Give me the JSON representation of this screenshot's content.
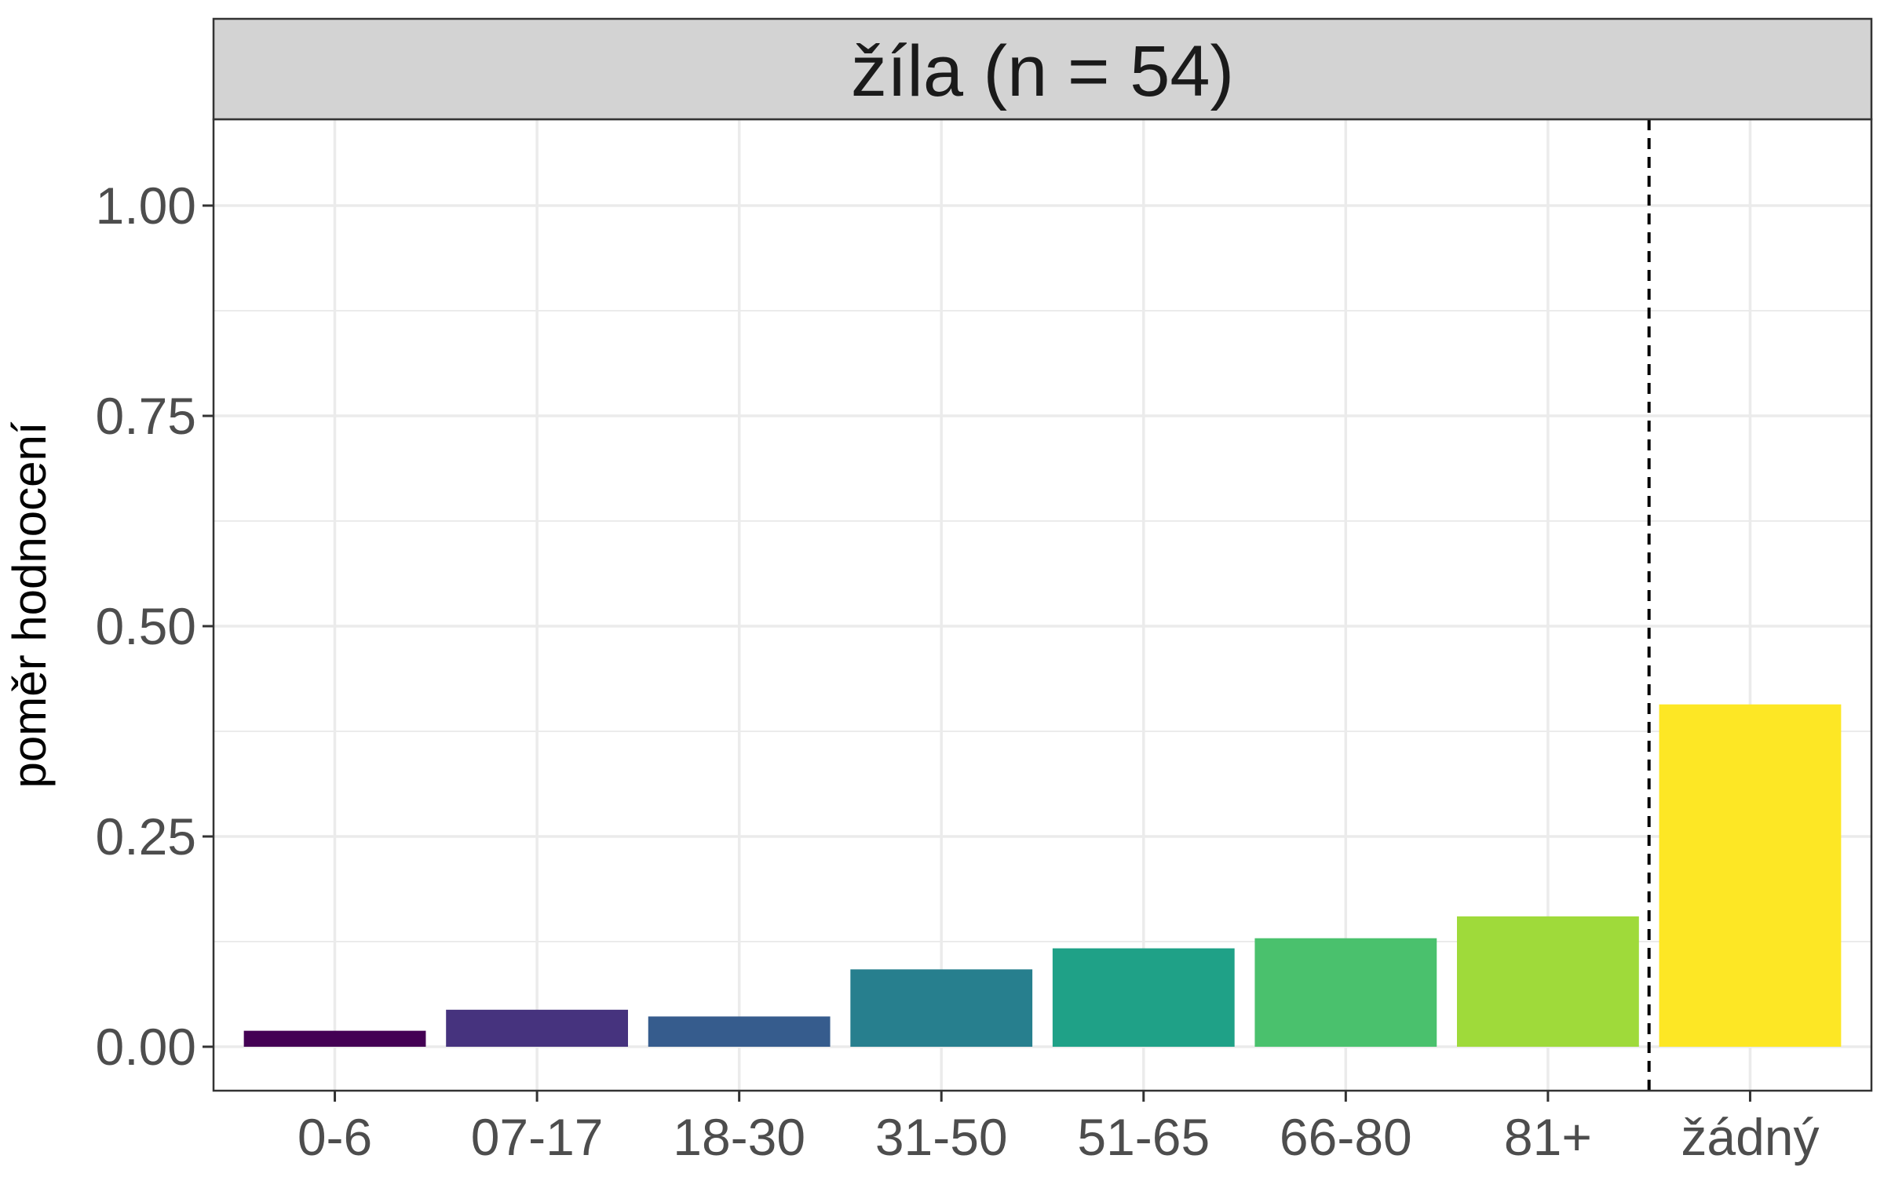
{
  "chart_data": {
    "type": "bar",
    "facet_label": "žíla (n = 54)",
    "ylabel": "poměr hodnocení",
    "xlabel": "",
    "ylim": [
      -0.05,
      1.1
    ],
    "y_ticks": [
      0.0,
      0.25,
      0.5,
      0.75,
      1.0
    ],
    "y_tick_labels": [
      "0.00",
      "0.25",
      "0.50",
      "0.75",
      "1.00"
    ],
    "categories": [
      "0-6",
      "07-17",
      "18-30",
      "31-50",
      "51-65",
      "66-80",
      "81+",
      "žádný"
    ],
    "values": [
      0.019,
      0.044,
      0.036,
      0.092,
      0.117,
      0.129,
      0.155,
      0.407
    ],
    "colors": [
      "#440154",
      "#46337E",
      "#365C8D",
      "#277F8E",
      "#1FA187",
      "#4AC16D",
      "#9FDA3A",
      "#FDE725"
    ],
    "reference_line": {
      "between_categories": [
        "81+",
        "žádný"
      ],
      "style": "dashed"
    },
    "grid": true,
    "legend": "none"
  }
}
